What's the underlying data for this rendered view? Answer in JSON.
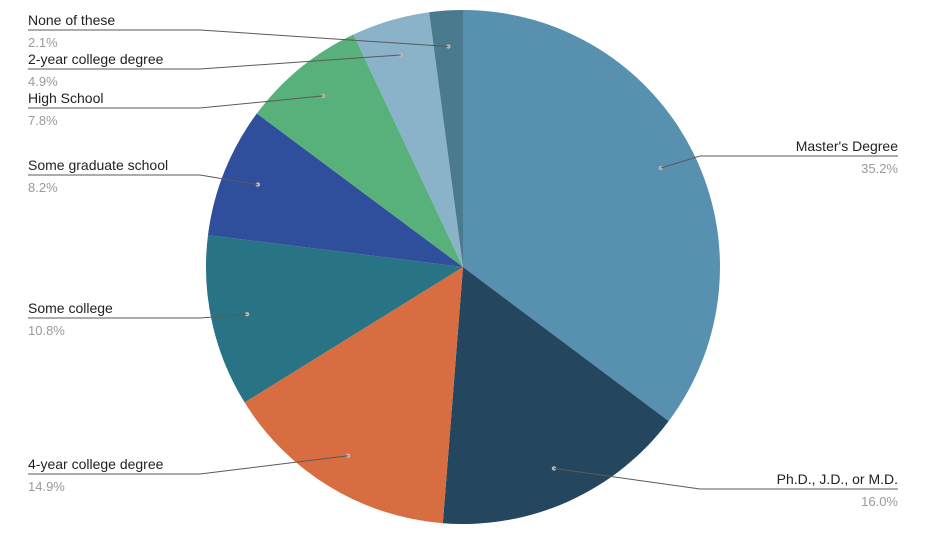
{
  "chart_data": {
    "type": "pie",
    "slices": [
      {
        "label": "Master's Degree",
        "value": 35.2,
        "display": "35.2%",
        "color": "#5891b0"
      },
      {
        "label": "Ph.D., J.D., or M.D.",
        "value": 16.0,
        "display": "16.0%",
        "color": "#24465f"
      },
      {
        "label": "4-year college degree",
        "value": 14.9,
        "display": "14.9%",
        "color": "#d76d41"
      },
      {
        "label": "Some college",
        "value": 10.8,
        "display": "10.8%",
        "color": "#287384"
      },
      {
        "label": "Some graduate school",
        "value": 8.2,
        "display": "8.2%",
        "color": "#2f4f9c"
      },
      {
        "label": "High School",
        "value": 7.8,
        "display": "7.8%",
        "color": "#58b07a"
      },
      {
        "label": "2-year college degree",
        "value": 4.9,
        "display": "4.9%",
        "color": "#8ab2c9"
      },
      {
        "label": "None of these",
        "value": 2.1,
        "display": "2.1%",
        "color": "#4a7a8e"
      }
    ],
    "legend": "none",
    "start_angle": "12 o'clock, clockwise"
  }
}
